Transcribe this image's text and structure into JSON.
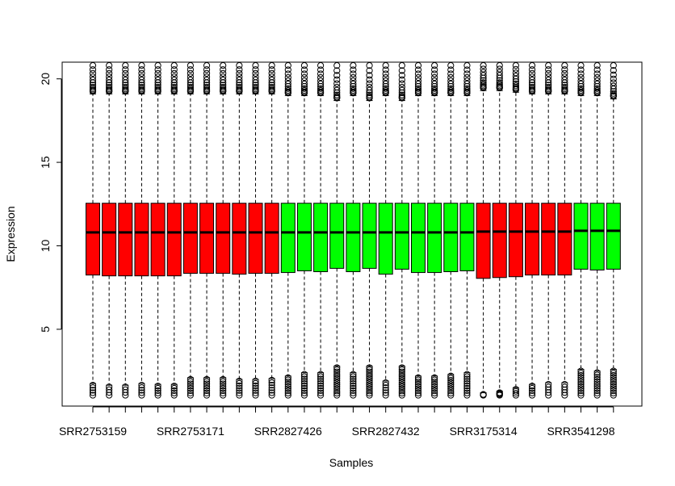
{
  "chart_data": {
    "type": "boxplot",
    "title": "",
    "xlabel": "Samples",
    "ylabel": "Expression",
    "ylim": [
      0.4,
      21.0
    ],
    "yticks": [
      5,
      10,
      15,
      20
    ],
    "grid": false,
    "legend": "none",
    "colors": {
      "group_red": "#ff0000",
      "group_green": "#00ff00",
      "outline": "#000000"
    },
    "x_tick_labels": [
      {
        "index": 1,
        "label": "SRR2753159"
      },
      {
        "index": 7,
        "label": "SRR2753171"
      },
      {
        "index": 13,
        "label": "SRR2827426"
      },
      {
        "index": 19,
        "label": "SRR2827432"
      },
      {
        "index": 25,
        "label": "SRR3175314"
      },
      {
        "index": 31,
        "label": "SRR3541298"
      }
    ],
    "series": [
      {
        "group": "red",
        "q1": 8.25,
        "median": 10.8,
        "q3": 12.55,
        "whisker_low": 1.75,
        "whisker_high": 19.1,
        "out_low_min": 1.05,
        "out_high_max": 20.8
      },
      {
        "group": "red",
        "q1": 8.2,
        "median": 10.8,
        "q3": 12.55,
        "whisker_low": 1.65,
        "whisker_high": 19.1,
        "out_low_min": 1.05,
        "out_high_max": 20.8
      },
      {
        "group": "red",
        "q1": 8.2,
        "median": 10.8,
        "q3": 12.55,
        "whisker_low": 1.65,
        "whisker_high": 19.1,
        "out_low_min": 1.05,
        "out_high_max": 20.8
      },
      {
        "group": "red",
        "q1": 8.2,
        "median": 10.8,
        "q3": 12.55,
        "whisker_low": 1.75,
        "whisker_high": 19.1,
        "out_low_min": 1.05,
        "out_high_max": 20.8
      },
      {
        "group": "red",
        "q1": 8.2,
        "median": 10.8,
        "q3": 12.55,
        "whisker_low": 1.7,
        "whisker_high": 19.1,
        "out_low_min": 1.05,
        "out_high_max": 20.8
      },
      {
        "group": "red",
        "q1": 8.2,
        "median": 10.8,
        "q3": 12.55,
        "whisker_low": 1.7,
        "whisker_high": 19.1,
        "out_low_min": 1.05,
        "out_high_max": 20.8
      },
      {
        "group": "red",
        "q1": 8.35,
        "median": 10.8,
        "q3": 12.55,
        "whisker_low": 2.1,
        "whisker_high": 19.1,
        "out_low_min": 1.05,
        "out_high_max": 20.8
      },
      {
        "group": "red",
        "q1": 8.35,
        "median": 10.8,
        "q3": 12.55,
        "whisker_low": 2.1,
        "whisker_high": 19.1,
        "out_low_min": 1.05,
        "out_high_max": 20.8
      },
      {
        "group": "red",
        "q1": 8.35,
        "median": 10.8,
        "q3": 12.55,
        "whisker_low": 2.1,
        "whisker_high": 19.1,
        "out_low_min": 1.05,
        "out_high_max": 20.8
      },
      {
        "group": "red",
        "q1": 8.3,
        "median": 10.8,
        "q3": 12.55,
        "whisker_low": 2.0,
        "whisker_high": 19.1,
        "out_low_min": 1.05,
        "out_high_max": 20.8
      },
      {
        "group": "red",
        "q1": 8.35,
        "median": 10.8,
        "q3": 12.55,
        "whisker_low": 2.0,
        "whisker_high": 19.1,
        "out_low_min": 1.05,
        "out_high_max": 20.8
      },
      {
        "group": "red",
        "q1": 8.35,
        "median": 10.8,
        "q3": 12.55,
        "whisker_low": 2.05,
        "whisker_high": 19.1,
        "out_low_min": 1.05,
        "out_high_max": 20.8
      },
      {
        "group": "green",
        "q1": 8.4,
        "median": 10.8,
        "q3": 12.55,
        "whisker_low": 2.2,
        "whisker_high": 19.0,
        "out_low_min": 1.05,
        "out_high_max": 20.8
      },
      {
        "group": "green",
        "q1": 8.5,
        "median": 10.8,
        "q3": 12.55,
        "whisker_low": 2.4,
        "whisker_high": 19.0,
        "out_low_min": 1.05,
        "out_high_max": 20.8
      },
      {
        "group": "green",
        "q1": 8.45,
        "median": 10.8,
        "q3": 12.55,
        "whisker_low": 2.4,
        "whisker_high": 19.0,
        "out_low_min": 1.05,
        "out_high_max": 20.8
      },
      {
        "group": "green",
        "q1": 8.65,
        "median": 10.8,
        "q3": 12.55,
        "whisker_low": 2.8,
        "whisker_high": 18.7,
        "out_low_min": 1.05,
        "out_high_max": 20.8
      },
      {
        "group": "green",
        "q1": 8.45,
        "median": 10.8,
        "q3": 12.55,
        "whisker_low": 2.4,
        "whisker_high": 19.0,
        "out_low_min": 1.05,
        "out_high_max": 20.8
      },
      {
        "group": "green",
        "q1": 8.65,
        "median": 10.8,
        "q3": 12.55,
        "whisker_low": 2.8,
        "whisker_high": 18.7,
        "out_low_min": 1.05,
        "out_high_max": 20.8
      },
      {
        "group": "green",
        "q1": 8.3,
        "median": 10.8,
        "q3": 12.55,
        "whisker_low": 1.9,
        "whisker_high": 19.0,
        "out_low_min": 1.05,
        "out_high_max": 20.8
      },
      {
        "group": "green",
        "q1": 8.6,
        "median": 10.8,
        "q3": 12.55,
        "whisker_low": 2.8,
        "whisker_high": 18.7,
        "out_low_min": 1.05,
        "out_high_max": 20.8
      },
      {
        "group": "green",
        "q1": 8.4,
        "median": 10.8,
        "q3": 12.55,
        "whisker_low": 2.2,
        "whisker_high": 19.0,
        "out_low_min": 1.05,
        "out_high_max": 20.8
      },
      {
        "group": "green",
        "q1": 8.4,
        "median": 10.8,
        "q3": 12.55,
        "whisker_low": 2.2,
        "whisker_high": 19.0,
        "out_low_min": 1.05,
        "out_high_max": 20.8
      },
      {
        "group": "green",
        "q1": 8.45,
        "median": 10.8,
        "q3": 12.55,
        "whisker_low": 2.3,
        "whisker_high": 19.0,
        "out_low_min": 1.05,
        "out_high_max": 20.8
      },
      {
        "group": "green",
        "q1": 8.5,
        "median": 10.8,
        "q3": 12.55,
        "whisker_low": 2.4,
        "whisker_high": 19.0,
        "out_low_min": 1.05,
        "out_high_max": 20.8
      },
      {
        "group": "red",
        "q1": 8.05,
        "median": 10.85,
        "q3": 12.55,
        "whisker_low": 1.2,
        "whisker_high": 19.3,
        "out_low_min": 1.05,
        "out_high_max": 20.8
      },
      {
        "group": "red",
        "q1": 8.1,
        "median": 10.85,
        "q3": 12.55,
        "whisker_low": 1.3,
        "whisker_high": 19.3,
        "out_low_min": 1.05,
        "out_high_max": 20.8
      },
      {
        "group": "red",
        "q1": 8.15,
        "median": 10.85,
        "q3": 12.55,
        "whisker_low": 1.5,
        "whisker_high": 19.2,
        "out_low_min": 1.05,
        "out_high_max": 20.8
      },
      {
        "group": "red",
        "q1": 8.25,
        "median": 10.85,
        "q3": 12.55,
        "whisker_low": 1.7,
        "whisker_high": 19.1,
        "out_low_min": 1.05,
        "out_high_max": 20.8
      },
      {
        "group": "red",
        "q1": 8.25,
        "median": 10.85,
        "q3": 12.55,
        "whisker_low": 1.8,
        "whisker_high": 19.1,
        "out_low_min": 1.05,
        "out_high_max": 20.8
      },
      {
        "group": "red",
        "q1": 8.25,
        "median": 10.85,
        "q3": 12.55,
        "whisker_low": 1.8,
        "whisker_high": 19.1,
        "out_low_min": 1.05,
        "out_high_max": 20.8
      },
      {
        "group": "green",
        "q1": 8.6,
        "median": 10.9,
        "q3": 12.55,
        "whisker_low": 2.6,
        "whisker_high": 19.0,
        "out_low_min": 1.05,
        "out_high_max": 20.8
      },
      {
        "group": "green",
        "q1": 8.55,
        "median": 10.9,
        "q3": 12.55,
        "whisker_low": 2.5,
        "whisker_high": 19.0,
        "out_low_min": 1.05,
        "out_high_max": 20.8
      },
      {
        "group": "green",
        "q1": 8.6,
        "median": 10.9,
        "q3": 12.55,
        "whisker_low": 2.6,
        "whisker_high": 18.8,
        "out_low_min": 1.05,
        "out_high_max": 20.8
      }
    ]
  }
}
